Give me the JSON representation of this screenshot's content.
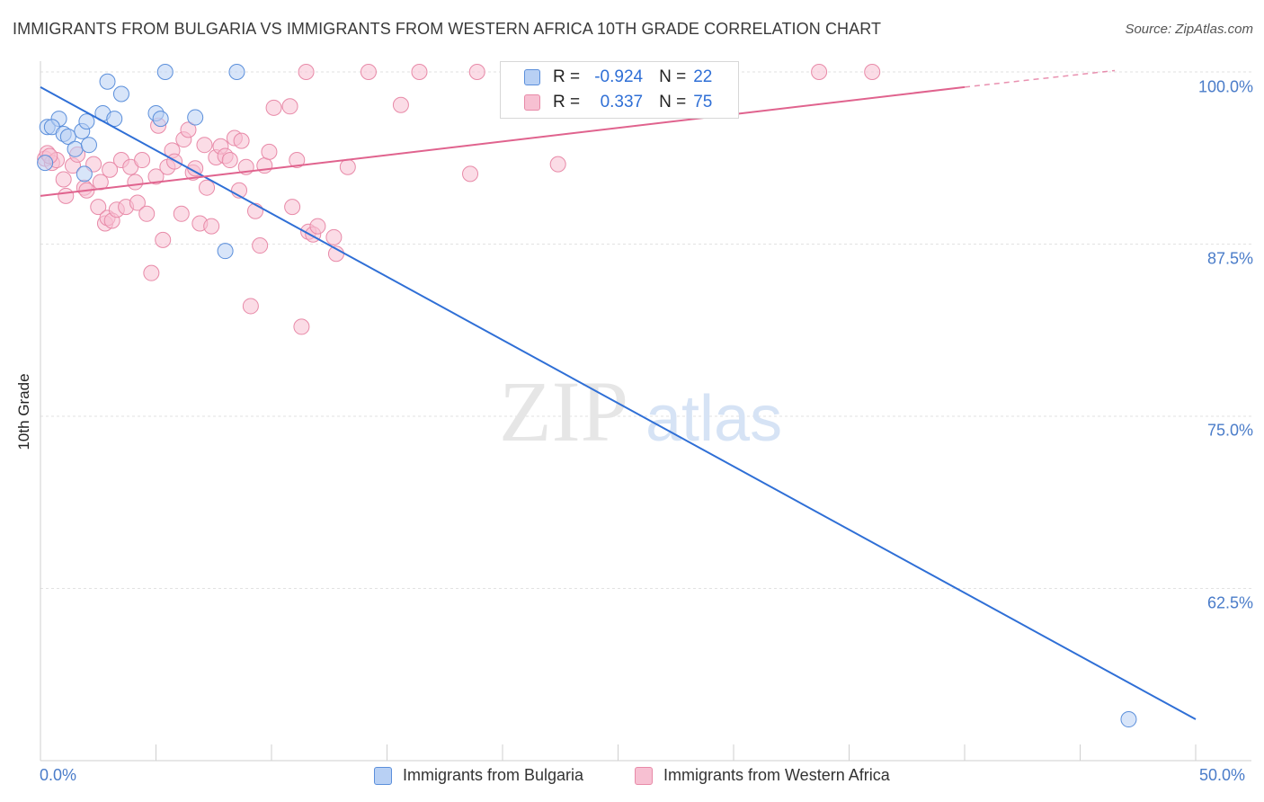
{
  "header": {
    "title": "IMMIGRANTS FROM BULGARIA VS IMMIGRANTS FROM WESTERN AFRICA 10TH GRADE CORRELATION CHART",
    "source": "Source: ZipAtlas.com"
  },
  "watermark": {
    "zip": "ZIP",
    "atlas": "atlas"
  },
  "legend": {
    "rows": [
      {
        "r_label": "R =",
        "r_value": "-0.924",
        "n_label": "N =",
        "n_value": "22"
      },
      {
        "r_label": "R =",
        "r_value": "0.337",
        "n_label": "N =",
        "n_value": "75"
      }
    ]
  },
  "bottom_legend": {
    "bulgaria": "Immigrants from Bulgaria",
    "western_africa": "Immigrants from Western Africa"
  },
  "colors": {
    "blue_fill": "#b8d0f4",
    "blue_stroke": "#5b8fdb",
    "blue_line": "#2f6fd6",
    "pink_fill": "#f7c0d2",
    "pink_stroke": "#e88aa8",
    "pink_line": "#e0638e",
    "tick_text": "#4a7cc9",
    "grid": "#e2e2e2"
  },
  "chart_data": {
    "type": "scatter",
    "title": "IMMIGRANTS FROM BULGARIA VS IMMIGRANTS FROM WESTERN AFRICA 10TH GRADE CORRELATION CHART",
    "xlabel": "",
    "ylabel": "10th Grade",
    "xlim": [
      0,
      50
    ],
    "ylim": [
      52,
      102.5
    ],
    "x_tick_labels": [
      "0.0%",
      "50.0%"
    ],
    "y_ticks": [
      100,
      87.5,
      75,
      62.5
    ],
    "y_tick_labels": [
      "100.0%",
      "87.5%",
      "75.0%",
      "62.5%"
    ],
    "grid": true,
    "legend_position": "top-center",
    "series": [
      {
        "name": "Immigrants from Bulgaria",
        "color": "blue",
        "R": -0.924,
        "N": 22,
        "trendline": {
          "x": [
            0,
            50
          ],
          "y": [
            98.9,
            53.0
          ]
        },
        "points": [
          [
            0.3,
            96.0
          ],
          [
            0.8,
            96.6
          ],
          [
            0.5,
            96.0
          ],
          [
            1.0,
            95.5
          ],
          [
            1.2,
            95.3
          ],
          [
            1.8,
            95.7
          ],
          [
            1.5,
            94.4
          ],
          [
            2.1,
            94.7
          ],
          [
            2.0,
            96.4
          ],
          [
            2.7,
            97.0
          ],
          [
            3.2,
            96.6
          ],
          [
            2.9,
            99.3
          ],
          [
            3.5,
            98.4
          ],
          [
            5.0,
            97.0
          ],
          [
            5.2,
            96.6
          ],
          [
            6.7,
            96.7
          ],
          [
            5.4,
            100.0
          ],
          [
            8.5,
            100.0
          ],
          [
            1.9,
            92.6
          ],
          [
            0.2,
            93.4
          ],
          [
            8.0,
            87.0
          ],
          [
            47.1,
            53.0
          ]
        ]
      },
      {
        "name": "Immigrants from Western Africa",
        "color": "pink",
        "R": 0.337,
        "N": 75,
        "trendline": {
          "x": [
            0,
            40
          ],
          "y": [
            91.0,
            98.9
          ]
        },
        "trendline_dashed": {
          "x": [
            40,
            46.5
          ],
          "y": [
            98.9,
            100.1
          ]
        },
        "points": [
          [
            0.2,
            93.7
          ],
          [
            0.3,
            94.1
          ],
          [
            0.5,
            93.4
          ],
          [
            0.7,
            93.6
          ],
          [
            1.0,
            92.2
          ],
          [
            1.1,
            91.0
          ],
          [
            1.4,
            93.2
          ],
          [
            1.6,
            94.0
          ],
          [
            1.9,
            91.6
          ],
          [
            2.0,
            91.4
          ],
          [
            2.3,
            93.3
          ],
          [
            2.5,
            90.2
          ],
          [
            2.6,
            92.0
          ],
          [
            2.8,
            89.0
          ],
          [
            2.9,
            89.4
          ],
          [
            3.1,
            89.2
          ],
          [
            3.3,
            90.0
          ],
          [
            3.5,
            93.6
          ],
          [
            3.7,
            90.2
          ],
          [
            3.9,
            93.1
          ],
          [
            4.1,
            92.0
          ],
          [
            4.2,
            90.5
          ],
          [
            4.4,
            93.6
          ],
          [
            4.6,
            89.7
          ],
          [
            4.8,
            85.4
          ],
          [
            5.0,
            92.4
          ],
          [
            5.1,
            96.1
          ],
          [
            5.3,
            87.8
          ],
          [
            5.5,
            93.1
          ],
          [
            5.7,
            94.3
          ],
          [
            5.8,
            93.5
          ],
          [
            6.1,
            89.7
          ],
          [
            6.2,
            95.1
          ],
          [
            6.4,
            95.8
          ],
          [
            6.6,
            92.7
          ],
          [
            6.7,
            93.0
          ],
          [
            6.9,
            89.0
          ],
          [
            7.1,
            94.7
          ],
          [
            7.2,
            91.6
          ],
          [
            7.4,
            88.8
          ],
          [
            7.6,
            93.8
          ],
          [
            7.8,
            94.6
          ],
          [
            8.0,
            93.9
          ],
          [
            8.2,
            93.6
          ],
          [
            8.4,
            95.2
          ],
          [
            8.6,
            91.4
          ],
          [
            8.7,
            95.0
          ],
          [
            8.9,
            93.1
          ],
          [
            9.1,
            83.0
          ],
          [
            9.3,
            89.9
          ],
          [
            9.5,
            87.4
          ],
          [
            9.7,
            93.2
          ],
          [
            9.9,
            94.2
          ],
          [
            10.1,
            97.4
          ],
          [
            10.8,
            97.5
          ],
          [
            10.9,
            90.2
          ],
          [
            11.1,
            93.6
          ],
          [
            11.3,
            81.5
          ],
          [
            11.6,
            88.4
          ],
          [
            11.8,
            88.2
          ],
          [
            12.0,
            88.8
          ],
          [
            12.7,
            88.0
          ],
          [
            12.8,
            86.8
          ],
          [
            13.3,
            93.1
          ],
          [
            11.5,
            100.0
          ],
          [
            14.2,
            100.0
          ],
          [
            16.4,
            100.0
          ],
          [
            18.9,
            100.0
          ],
          [
            15.6,
            97.6
          ],
          [
            18.6,
            92.6
          ],
          [
            22.4,
            93.3
          ],
          [
            33.7,
            100.0
          ],
          [
            36.0,
            100.0
          ],
          [
            0.4,
            93.9
          ],
          [
            3.0,
            92.9
          ]
        ]
      }
    ]
  }
}
